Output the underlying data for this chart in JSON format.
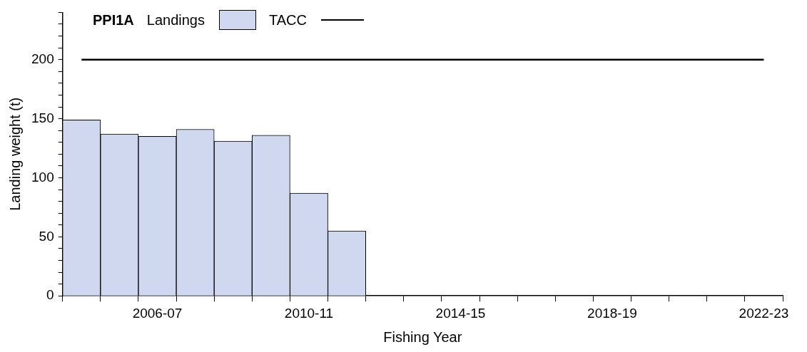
{
  "chart_data": {
    "type": "bar",
    "title": "PPI1A",
    "xlabel": "Fishing Year",
    "ylabel": "Landing weight (t)",
    "categories": [
      null,
      null,
      "2006-07",
      null,
      null,
      null,
      "2010-11",
      null,
      null,
      null,
      "2014-15",
      null,
      null,
      null,
      "2018-19",
      null,
      null,
      null,
      "2022-23"
    ],
    "series": [
      {
        "name": "Landings",
        "color": "#d0d8f0",
        "values": [
          149,
          137,
          135,
          141,
          131,
          136,
          87,
          55,
          null,
          null,
          null,
          null,
          null,
          null,
          null,
          null,
          null,
          null,
          null
        ]
      },
      {
        "name": "TACC",
        "type": "line",
        "color": "#000000",
        "values": [
          200,
          200,
          200,
          200,
          200,
          200,
          200,
          200,
          200,
          200,
          200,
          200,
          200,
          200,
          200,
          200,
          200,
          200,
          200
        ]
      }
    ],
    "ylim": [
      0,
      240
    ],
    "yticks": [
      0,
      {
        "value": 10,
        "label": null
      },
      {
        "value": 20,
        "label": null
      },
      {
        "value": 30,
        "label": null
      },
      {
        "value": 40,
        "label": null
      },
      50,
      {
        "value": 60,
        "label": null
      },
      {
        "value": 70,
        "label": null
      },
      {
        "value": 80,
        "label": null
      },
      {
        "value": 90,
        "label": null
      },
      100,
      {
        "value": 110,
        "label": null
      },
      {
        "value": 120,
        "label": null
      },
      {
        "value": 130,
        "label": null
      },
      {
        "value": 140,
        "label": null
      },
      150,
      {
        "value": 160,
        "label": null
      },
      {
        "value": 170,
        "label": null
      },
      {
        "value": 180,
        "label": null
      },
      {
        "value": 190,
        "label": null
      },
      200,
      {
        "value": 210,
        "label": null
      },
      {
        "value": 220,
        "label": null
      },
      {
        "value": 230,
        "label": null
      },
      {
        "value": 240,
        "label": null
      }
    ],
    "grid": false,
    "legend": "top left",
    "marker": "none",
    "line_style": "solid"
  }
}
